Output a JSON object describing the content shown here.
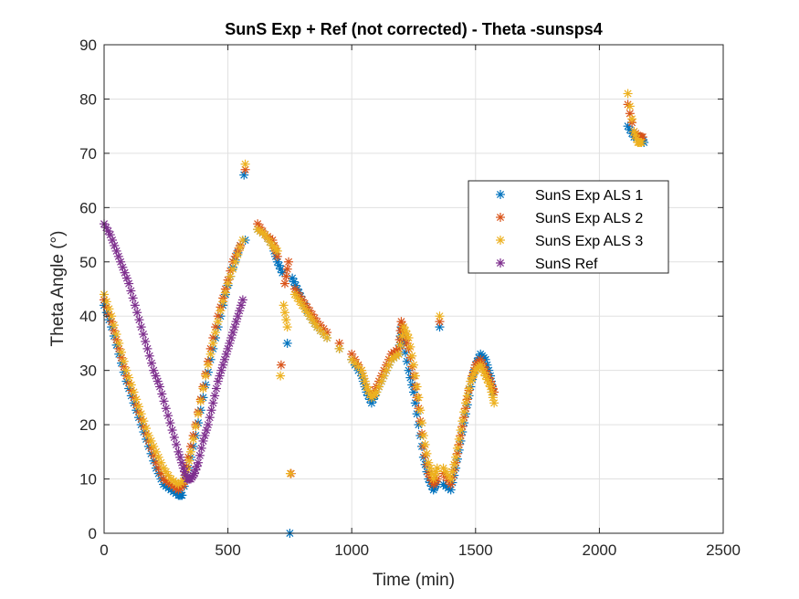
{
  "chart_data": {
    "type": "scatter",
    "title": "SunS Exp + Ref (not corrected) - Theta -sunsps4",
    "xlabel": "Time (min)",
    "ylabel": "Theta Angle (°)",
    "xlim": [
      0,
      2500
    ],
    "ylim": [
      0,
      90
    ],
    "xticks": [
      0,
      500,
      1000,
      1500,
      2000,
      2500
    ],
    "yticks": [
      0,
      10,
      20,
      30,
      40,
      50,
      60,
      70,
      80,
      90
    ],
    "xtick_labels": [
      "0",
      "500",
      "1000",
      "1500",
      "2000",
      "2500"
    ],
    "ytick_labels": [
      "0",
      "10",
      "20",
      "30",
      "40",
      "50",
      "60",
      "70",
      "80",
      "90"
    ],
    "grid": true,
    "legend_position": "center-right",
    "marker": "asterisk",
    "series": [
      {
        "name": "SunS Exp ALS 1",
        "color": "#0072BD",
        "x": [
          0,
          30,
          60,
          90,
          120,
          150,
          180,
          210,
          240,
          270,
          300,
          315,
          340,
          370,
          400,
          430,
          460,
          490,
          520,
          550,
          565,
          570,
          620,
          650,
          680,
          700,
          720,
          740,
          750,
          760,
          780,
          800,
          830,
          860,
          900,
          950,
          1000,
          1040,
          1060,
          1080,
          1100,
          1130,
          1160,
          1190,
          1200,
          1210,
          1230,
          1250,
          1270,
          1290,
          1310,
          1330,
          1340,
          1355,
          1370,
          1400,
          1420,
          1440,
          1460,
          1480,
          1500,
          1520,
          1540,
          1560,
          1570,
          2115,
          2140,
          2165,
          2180
        ],
        "y": [
          42,
          38,
          33,
          28,
          24,
          20,
          16,
          12,
          9,
          8,
          7,
          7,
          12,
          18,
          25,
          32,
          38,
          44,
          49,
          53,
          66,
          54,
          56,
          55,
          53,
          50,
          48,
          35,
          0,
          47,
          45,
          43,
          40,
          38,
          36,
          34,
          32,
          29,
          26,
          24,
          26,
          29,
          32,
          33,
          38,
          35,
          30,
          26,
          20,
          14,
          10,
          8,
          9,
          38,
          9,
          8,
          12,
          17,
          22,
          27,
          31,
          33,
          32,
          29,
          26,
          75,
          73,
          73,
          72
        ]
      },
      {
        "name": "SunS Exp ALS 2",
        "color": "#D95319",
        "x": [
          0,
          30,
          60,
          90,
          120,
          150,
          180,
          210,
          240,
          270,
          300,
          320,
          340,
          370,
          400,
          430,
          460,
          490,
          520,
          550,
          570,
          620,
          650,
          680,
          700,
          715,
          730,
          745,
          755,
          770,
          800,
          830,
          860,
          900,
          950,
          1000,
          1040,
          1060,
          1080,
          1100,
          1130,
          1160,
          1190,
          1200,
          1210,
          1230,
          1250,
          1270,
          1290,
          1310,
          1330,
          1345,
          1355,
          1370,
          1400,
          1420,
          1440,
          1460,
          1480,
          1500,
          1520,
          1540,
          1560,
          1575,
          2115,
          2140,
          2160,
          2175
        ],
        "y": [
          43,
          39,
          34,
          29,
          25,
          21,
          17,
          13,
          10,
          9,
          8,
          9,
          14,
          20,
          27,
          34,
          40,
          45,
          50,
          53,
          67,
          57,
          55,
          54,
          51,
          31,
          46,
          50,
          11,
          45,
          43,
          41,
          39,
          37,
          35,
          33,
          30,
          27,
          25,
          27,
          30,
          33,
          34,
          39,
          37,
          34,
          29,
          23,
          16,
          11,
          9,
          10,
          39,
          11,
          9,
          13,
          18,
          23,
          28,
          31,
          32,
          30,
          28,
          26,
          79,
          74,
          73,
          73
        ]
      },
      {
        "name": "SunS Exp ALS 3",
        "color": "#EDB120",
        "x": [
          0,
          30,
          60,
          90,
          120,
          150,
          180,
          210,
          240,
          270,
          300,
          330,
          350,
          380,
          410,
          440,
          470,
          500,
          530,
          560,
          570,
          620,
          650,
          680,
          700,
          712,
          725,
          740,
          752,
          770,
          800,
          830,
          860,
          900,
          950,
          1000,
          1040,
          1060,
          1080,
          1100,
          1130,
          1160,
          1190,
          1210,
          1230,
          1250,
          1270,
          1290,
          1310,
          1330,
          1345,
          1355,
          1370,
          1400,
          1420,
          1440,
          1460,
          1480,
          1500,
          1520,
          1540,
          1560,
          1575,
          2115,
          2140,
          2155,
          2170
        ],
        "y": [
          44,
          40,
          35,
          30,
          26,
          22,
          18,
          15,
          12,
          10,
          9,
          10,
          15,
          22,
          29,
          35,
          41,
          46,
          50,
          54,
          68,
          56,
          55,
          53,
          52,
          29,
          42,
          38,
          11,
          44,
          42,
          40,
          38,
          36,
          34,
          32,
          30,
          27,
          25,
          26,
          29,
          32,
          33,
          38,
          36,
          31,
          25,
          18,
          13,
          10,
          12,
          40,
          12,
          10,
          14,
          19,
          24,
          28,
          30,
          31,
          29,
          27,
          24,
          81,
          74,
          72,
          72
        ]
      },
      {
        "name": "SunS Ref",
        "color": "#7E2F8E",
        "x": [
          0,
          25,
          50,
          75,
          100,
          125,
          150,
          175,
          200,
          225,
          250,
          275,
          300,
          320,
          335,
          350,
          365,
          380,
          400,
          420,
          440,
          460,
          480,
          500,
          520,
          540,
          560
        ],
        "y": [
          57,
          55,
          52,
          49,
          46,
          42,
          38,
          34,
          30,
          27,
          23,
          19,
          15,
          12,
          10,
          10,
          11,
          13,
          17,
          20,
          24,
          28,
          31,
          34,
          37,
          40,
          43
        ]
      }
    ]
  }
}
